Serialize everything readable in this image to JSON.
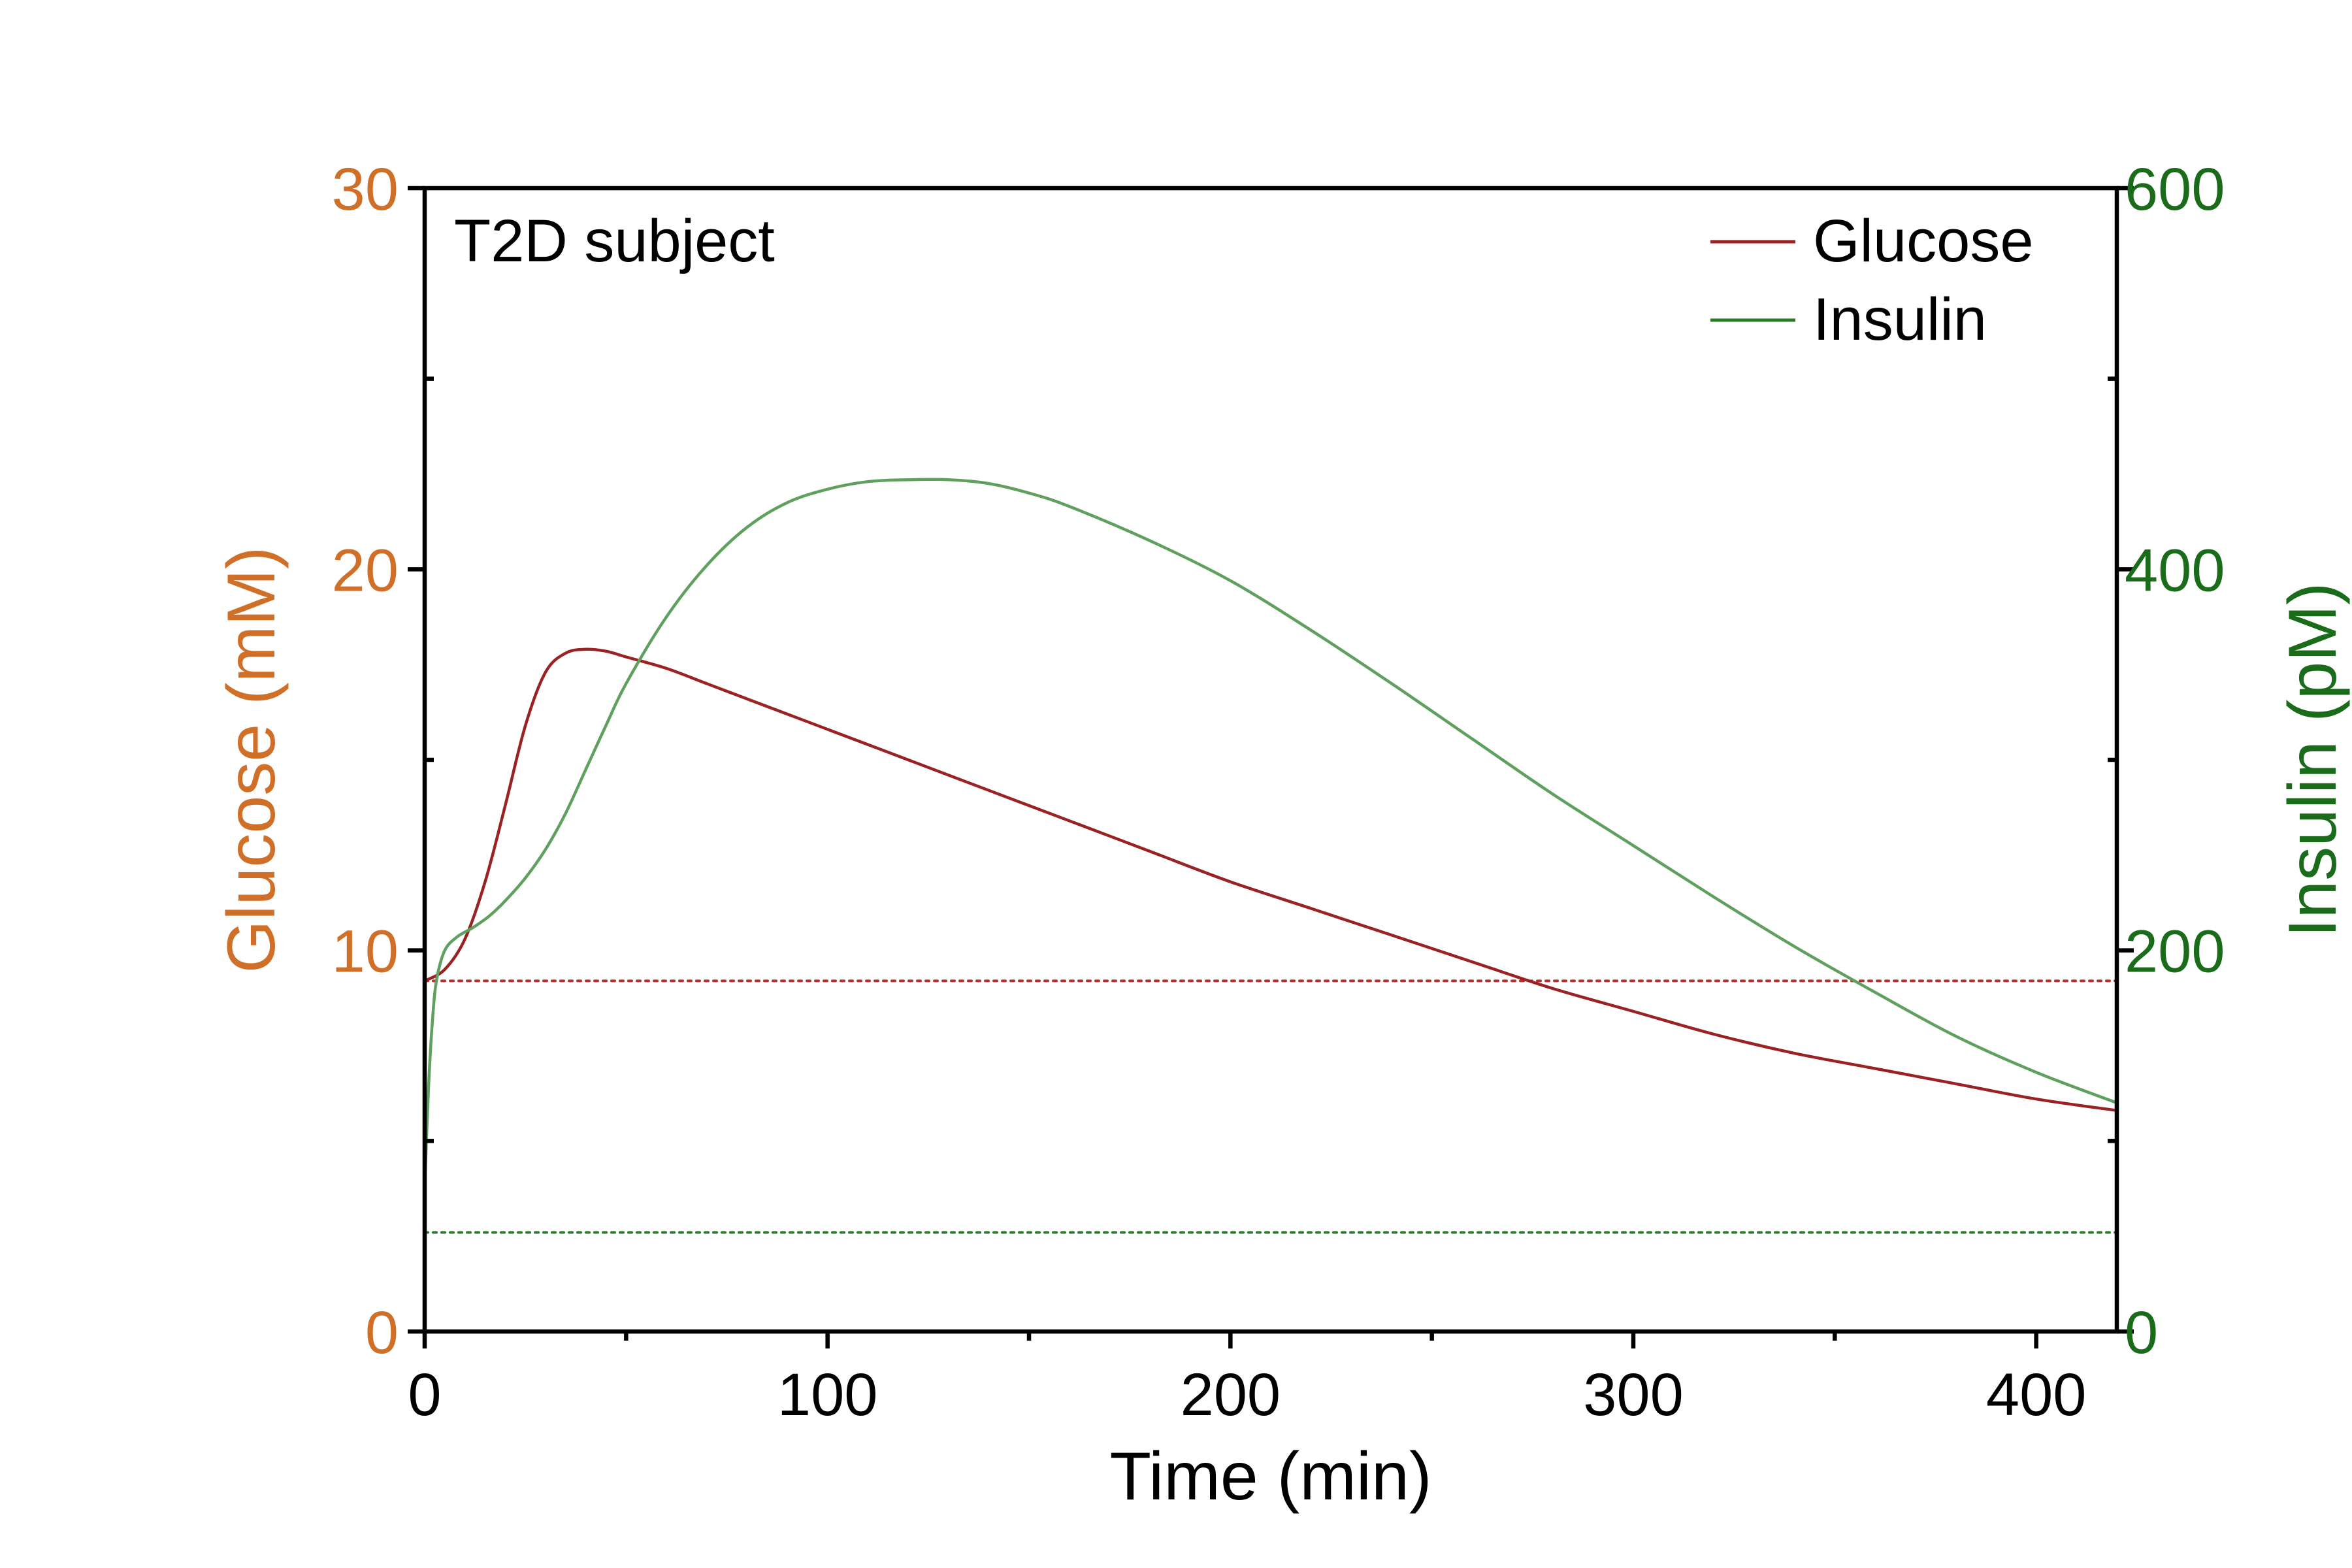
{
  "chart_data": {
    "type": "line",
    "annotation": "T2D subject",
    "xlabel": "Time (min)",
    "ylabel_left": "Glucose (mM)",
    "ylabel_right": "Insulin (pM)",
    "xlim": [
      0,
      420
    ],
    "ylim_left": [
      0,
      30
    ],
    "ylim_right": [
      0,
      600
    ],
    "x_ticks": [
      0,
      100,
      200,
      300,
      400
    ],
    "x_tick_labels": [
      "0",
      "100",
      "200",
      "300",
      "400"
    ],
    "y_left_ticks": [
      0,
      10,
      20,
      30
    ],
    "y_left_tick_labels": [
      "0",
      "10",
      "20",
      "30"
    ],
    "y_right_ticks": [
      0,
      200,
      400,
      600
    ],
    "y_right_tick_labels": [
      "0",
      "200",
      "400",
      "600"
    ],
    "grid": false,
    "legend_position": "top-right",
    "colors": {
      "glucose_line": "#9b2222",
      "insulin_line": "#5fa05f",
      "glucose_axis": "#d07028",
      "insulin_axis": "#1a6b1a",
      "glucose_baseline": "#b03030",
      "insulin_baseline": "#2a7a2a"
    },
    "series": [
      {
        "name": "Glucose",
        "axis": "left",
        "x": [
          0,
          5,
          10,
          15,
          20,
          25,
          30,
          35,
          40,
          45,
          50,
          60,
          70,
          80,
          90,
          100,
          120,
          140,
          160,
          180,
          200,
          220,
          240,
          260,
          280,
          300,
          320,
          340,
          360,
          380,
          400,
          420
        ],
        "y": [
          9.2,
          9.5,
          10.3,
          11.8,
          13.8,
          15.9,
          17.3,
          17.8,
          17.9,
          17.85,
          17.7,
          17.4,
          17.0,
          16.6,
          16.2,
          15.8,
          15.0,
          14.2,
          13.4,
          12.6,
          11.8,
          11.1,
          10.4,
          9.7,
          9.0,
          8.4,
          7.8,
          7.3,
          6.9,
          6.5,
          6.1,
          5.8
        ]
      },
      {
        "name": "Insulin",
        "axis": "right",
        "x": [
          0,
          1,
          2,
          3,
          5,
          8,
          12,
          16,
          20,
          25,
          30,
          35,
          40,
          45,
          50,
          60,
          70,
          80,
          90,
          100,
          110,
          120,
          130,
          140,
          150,
          160,
          180,
          200,
          220,
          240,
          260,
          280,
          300,
          320,
          340,
          360,
          380,
          400,
          420
        ],
        "y": [
          75,
          130,
          165,
          185,
          200,
          207,
          212,
          218,
          226,
          238,
          253,
          272,
          295,
          318,
          340,
          375,
          402,
          422,
          435,
          442,
          446,
          447,
          447,
          445,
          440,
          433,
          415,
          394,
          368,
          340,
          311,
          282,
          255,
          228,
          202,
          178,
          155,
          136,
          120
        ]
      }
    ],
    "baselines": [
      {
        "axis": "left",
        "value": 9.2,
        "color_key": "glucose_baseline"
      },
      {
        "axis": "right",
        "value": 52,
        "color_key": "insulin_baseline"
      }
    ]
  }
}
